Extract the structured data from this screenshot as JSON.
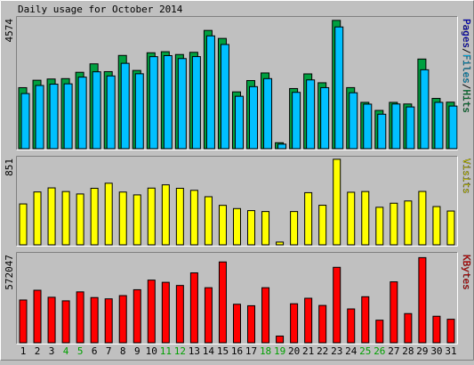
{
  "chart_data": {
    "type": "bar",
    "title": "Daily usage for October 2014",
    "categories": [
      "1",
      "2",
      "3",
      "4",
      "5",
      "6",
      "7",
      "8",
      "9",
      "10",
      "11",
      "12",
      "13",
      "14",
      "15",
      "16",
      "17",
      "18",
      "19",
      "20",
      "21",
      "22",
      "23",
      "24",
      "25",
      "26",
      "27",
      "28",
      "29",
      "30",
      "31"
    ],
    "weekend_days": [
      "4",
      "5",
      "11",
      "12",
      "18",
      "19",
      "25",
      "26"
    ],
    "panels": [
      {
        "id": "hits",
        "ymax_label": "4574",
        "ylim": [
          0,
          4574
        ],
        "series": [
          {
            "name": "Hits",
            "color": "#00a040",
            "values": [
              2147,
              2408,
              2452,
              2465,
              2688,
              2985,
              2711,
              3281,
              2753,
              3375,
              3412,
              3314,
              3391,
              4161,
              3880,
              1999,
              2397,
              2665,
              210,
              2116,
              2632,
              2320,
              4515,
              2149,
              1630,
              1346,
              1630,
              1573,
              3154,
              1769,
              1637
            ]
          },
          {
            "name": "Files",
            "color": "#00c0ff",
            "values": [
              1940,
              2224,
              2270,
              2282,
              2518,
              2705,
              2560,
              3004,
              2636,
              3238,
              3274,
              3171,
              3240,
              3970,
              3667,
              1844,
              2183,
              2465,
              160,
              1982,
              2420,
              2148,
              4284,
              1968,
              1568,
              1213,
              1573,
              1469,
              2777,
              1630,
              1500
            ]
          },
          {
            "name": "Pages",
            "color": "#0000ff",
            "values": [
              0,
              0,
              0,
              0,
              0,
              0,
              0,
              0,
              0,
              0,
              0,
              0,
              0,
              0,
              0,
              0,
              0,
              0,
              0,
              0,
              0,
              0,
              0,
              0,
              0,
              0,
              0,
              0,
              0,
              0,
              0
            ]
          }
        ],
        "legend_label": "Pages/Files/Hits",
        "legend_parts": [
          "Pages",
          "/",
          "Files",
          "/",
          "Hits"
        ]
      },
      {
        "id": "visits",
        "ymax_label": "851",
        "ylim": [
          0,
          851
        ],
        "series": [
          {
            "name": "Visits",
            "color": "#ffff00",
            "values": [
              403,
              521,
              561,
              525,
              501,
              557,
              607,
              520,
              492,
              559,
              591,
              557,
              537,
              474,
              389,
              357,
              337,
              328,
              27,
              328,
              514,
              390,
              843,
              518,
              525,
              370,
              410,
              432,
              526,
              377,
              333
            ]
          }
        ],
        "legend_label": "Visits",
        "legend_parts": [
          "Visits"
        ]
      },
      {
        "id": "kbytes",
        "ymax_label": "572047",
        "ylim": [
          0,
          572047
        ],
        "series": [
          {
            "name": "KBytes",
            "color": "#ff0000",
            "values": [
              277500,
              340800,
              295200,
              272100,
              330200,
              293400,
              284900,
              306000,
              344200,
              406700,
              392300,
              371800,
              453700,
              357300,
              524400,
              249900,
              240300,
              357300,
              43400,
              253100,
              288800,
              242100,
              489600,
              219500,
              298700,
              146500,
              395400,
              189300,
              552500,
              172000,
              152600
            ]
          }
        ],
        "legend_label": "KBytes",
        "legend_parts": [
          "KBytes"
        ]
      }
    ]
  }
}
